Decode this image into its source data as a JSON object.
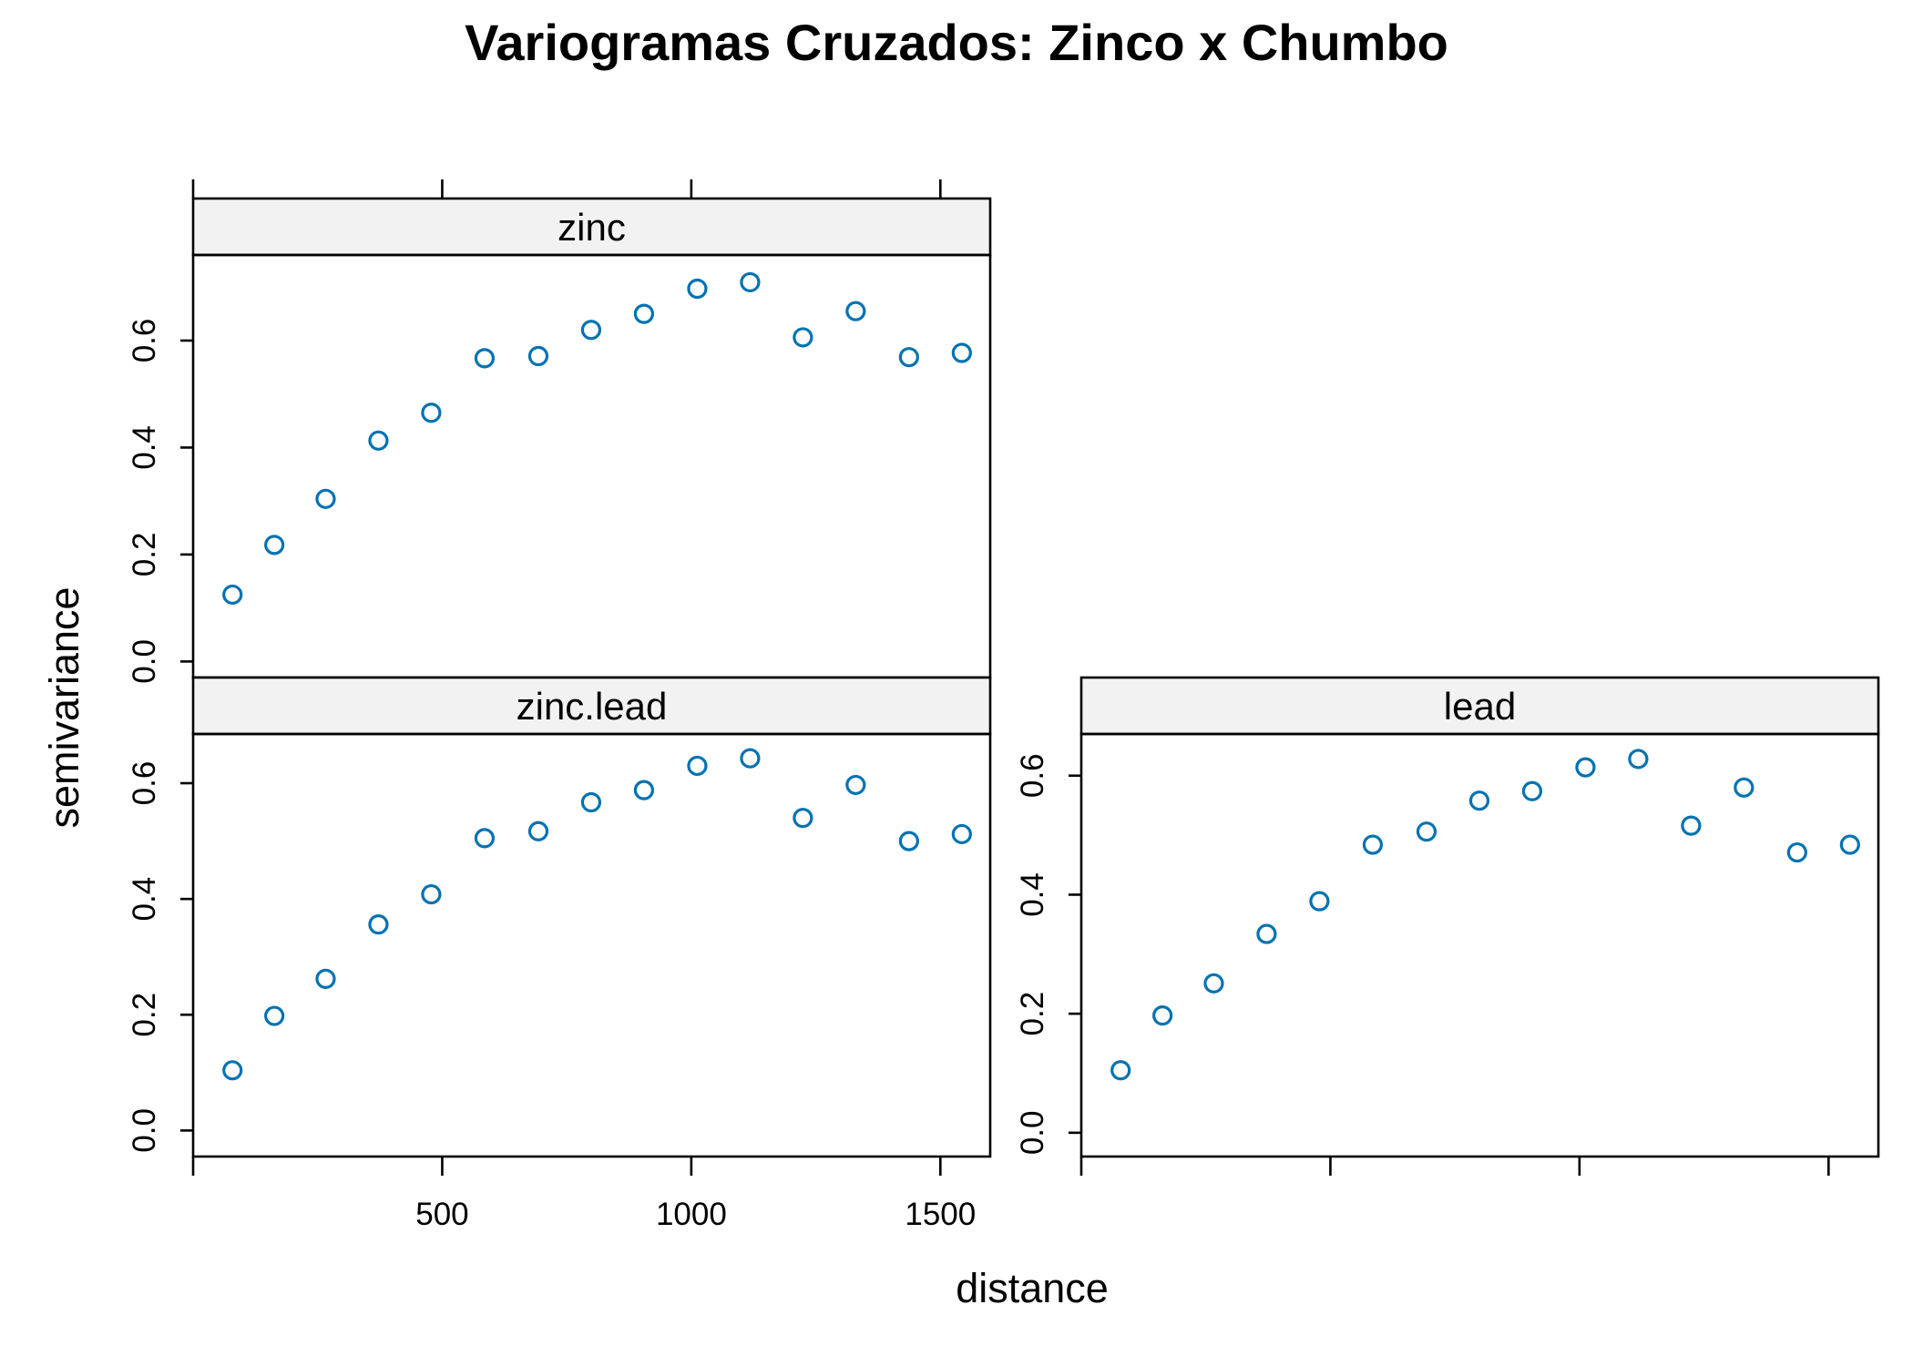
{
  "chart_data": {
    "type": "scatter",
    "title": "Variogramas Cruzados: Zinco x Chumbo",
    "xlabel": "distance",
    "ylabel": "semivariance",
    "xlim": [
      0,
      1600
    ],
    "x_ticks": [
      500,
      1000,
      1500
    ],
    "point_color": "#0072B2",
    "panels": [
      {
        "name": "zinc",
        "ylim": [
          -0.03,
          0.76
        ],
        "y_ticks": [
          0.0,
          0.2,
          0.4,
          0.6
        ],
        "x": [
          79,
          163,
          266,
          372,
          478,
          585,
          693,
          799,
          905,
          1012,
          1118,
          1224,
          1330,
          1437,
          1543
        ],
        "y": [
          0.125,
          0.218,
          0.304,
          0.413,
          0.465,
          0.567,
          0.571,
          0.62,
          0.65,
          0.697,
          0.709,
          0.606,
          0.655,
          0.569,
          0.577
        ]
      },
      {
        "name": "zinc.lead",
        "ylim": [
          -0.045,
          0.685
        ],
        "y_ticks": [
          0.0,
          0.2,
          0.4,
          0.6
        ],
        "x": [
          79,
          163,
          266,
          372,
          478,
          585,
          693,
          799,
          905,
          1012,
          1118,
          1224,
          1330,
          1437,
          1543
        ],
        "y": [
          0.104,
          0.198,
          0.262,
          0.356,
          0.408,
          0.505,
          0.517,
          0.567,
          0.588,
          0.63,
          0.643,
          0.54,
          0.597,
          0.5,
          0.512
        ]
      },
      {
        "name": "lead",
        "ylim": [
          -0.04,
          0.67
        ],
        "y_ticks": [
          0.0,
          0.2,
          0.4,
          0.6
        ],
        "x": [
          79,
          163,
          266,
          372,
          478,
          585,
          693,
          799,
          905,
          1012,
          1118,
          1224,
          1330,
          1437,
          1543
        ],
        "y": [
          0.105,
          0.197,
          0.251,
          0.334,
          0.389,
          0.484,
          0.506,
          0.558,
          0.574,
          0.614,
          0.628,
          0.516,
          0.58,
          0.471,
          0.484
        ]
      }
    ]
  }
}
